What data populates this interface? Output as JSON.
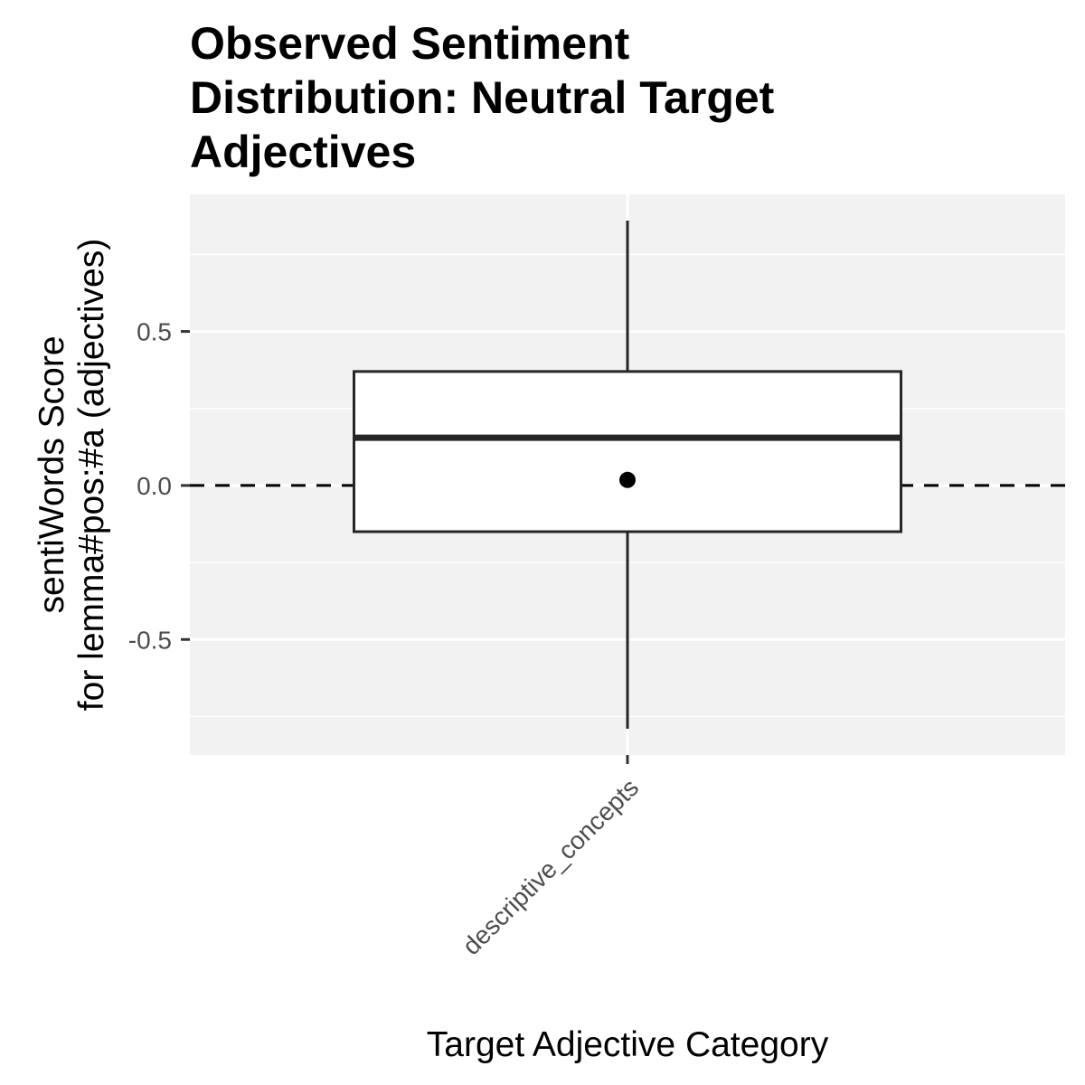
{
  "chart_data": {
    "type": "boxplot",
    "title_lines": [
      "Observed Sentiment",
      "Distribution: Neutral Target",
      "Adjectives"
    ],
    "xlabel": "Target Adjective Category",
    "ylabel_lines": [
      "sentiWords Score",
      "for lemma#pos:#a (adjectives)"
    ],
    "categories": [
      "descriptive_concepts"
    ],
    "boxes": [
      {
        "category": "descriptive_concepts",
        "min": -0.79,
        "q1": -0.15,
        "median": 0.155,
        "q3": 0.37,
        "max": 0.86,
        "mean": 0.018
      }
    ],
    "y_ticks": [
      -0.5,
      0.0,
      0.5
    ],
    "y_tick_labels": [
      "-0.5",
      "0.0",
      "0.5"
    ],
    "ylim": [
      -0.875,
      0.945
    ],
    "reference_line": {
      "y": 0,
      "style": "dashed"
    },
    "grid": true,
    "x_label_rotation_deg": -45,
    "colors": {
      "panel_background": "#f2f2f2",
      "grid": "#ffffff",
      "box_fill": "#ffffff",
      "box_stroke": "#262626",
      "mean_point": "#000000",
      "reference_line": "#000000",
      "tick_text": "#4d4d4d"
    }
  }
}
